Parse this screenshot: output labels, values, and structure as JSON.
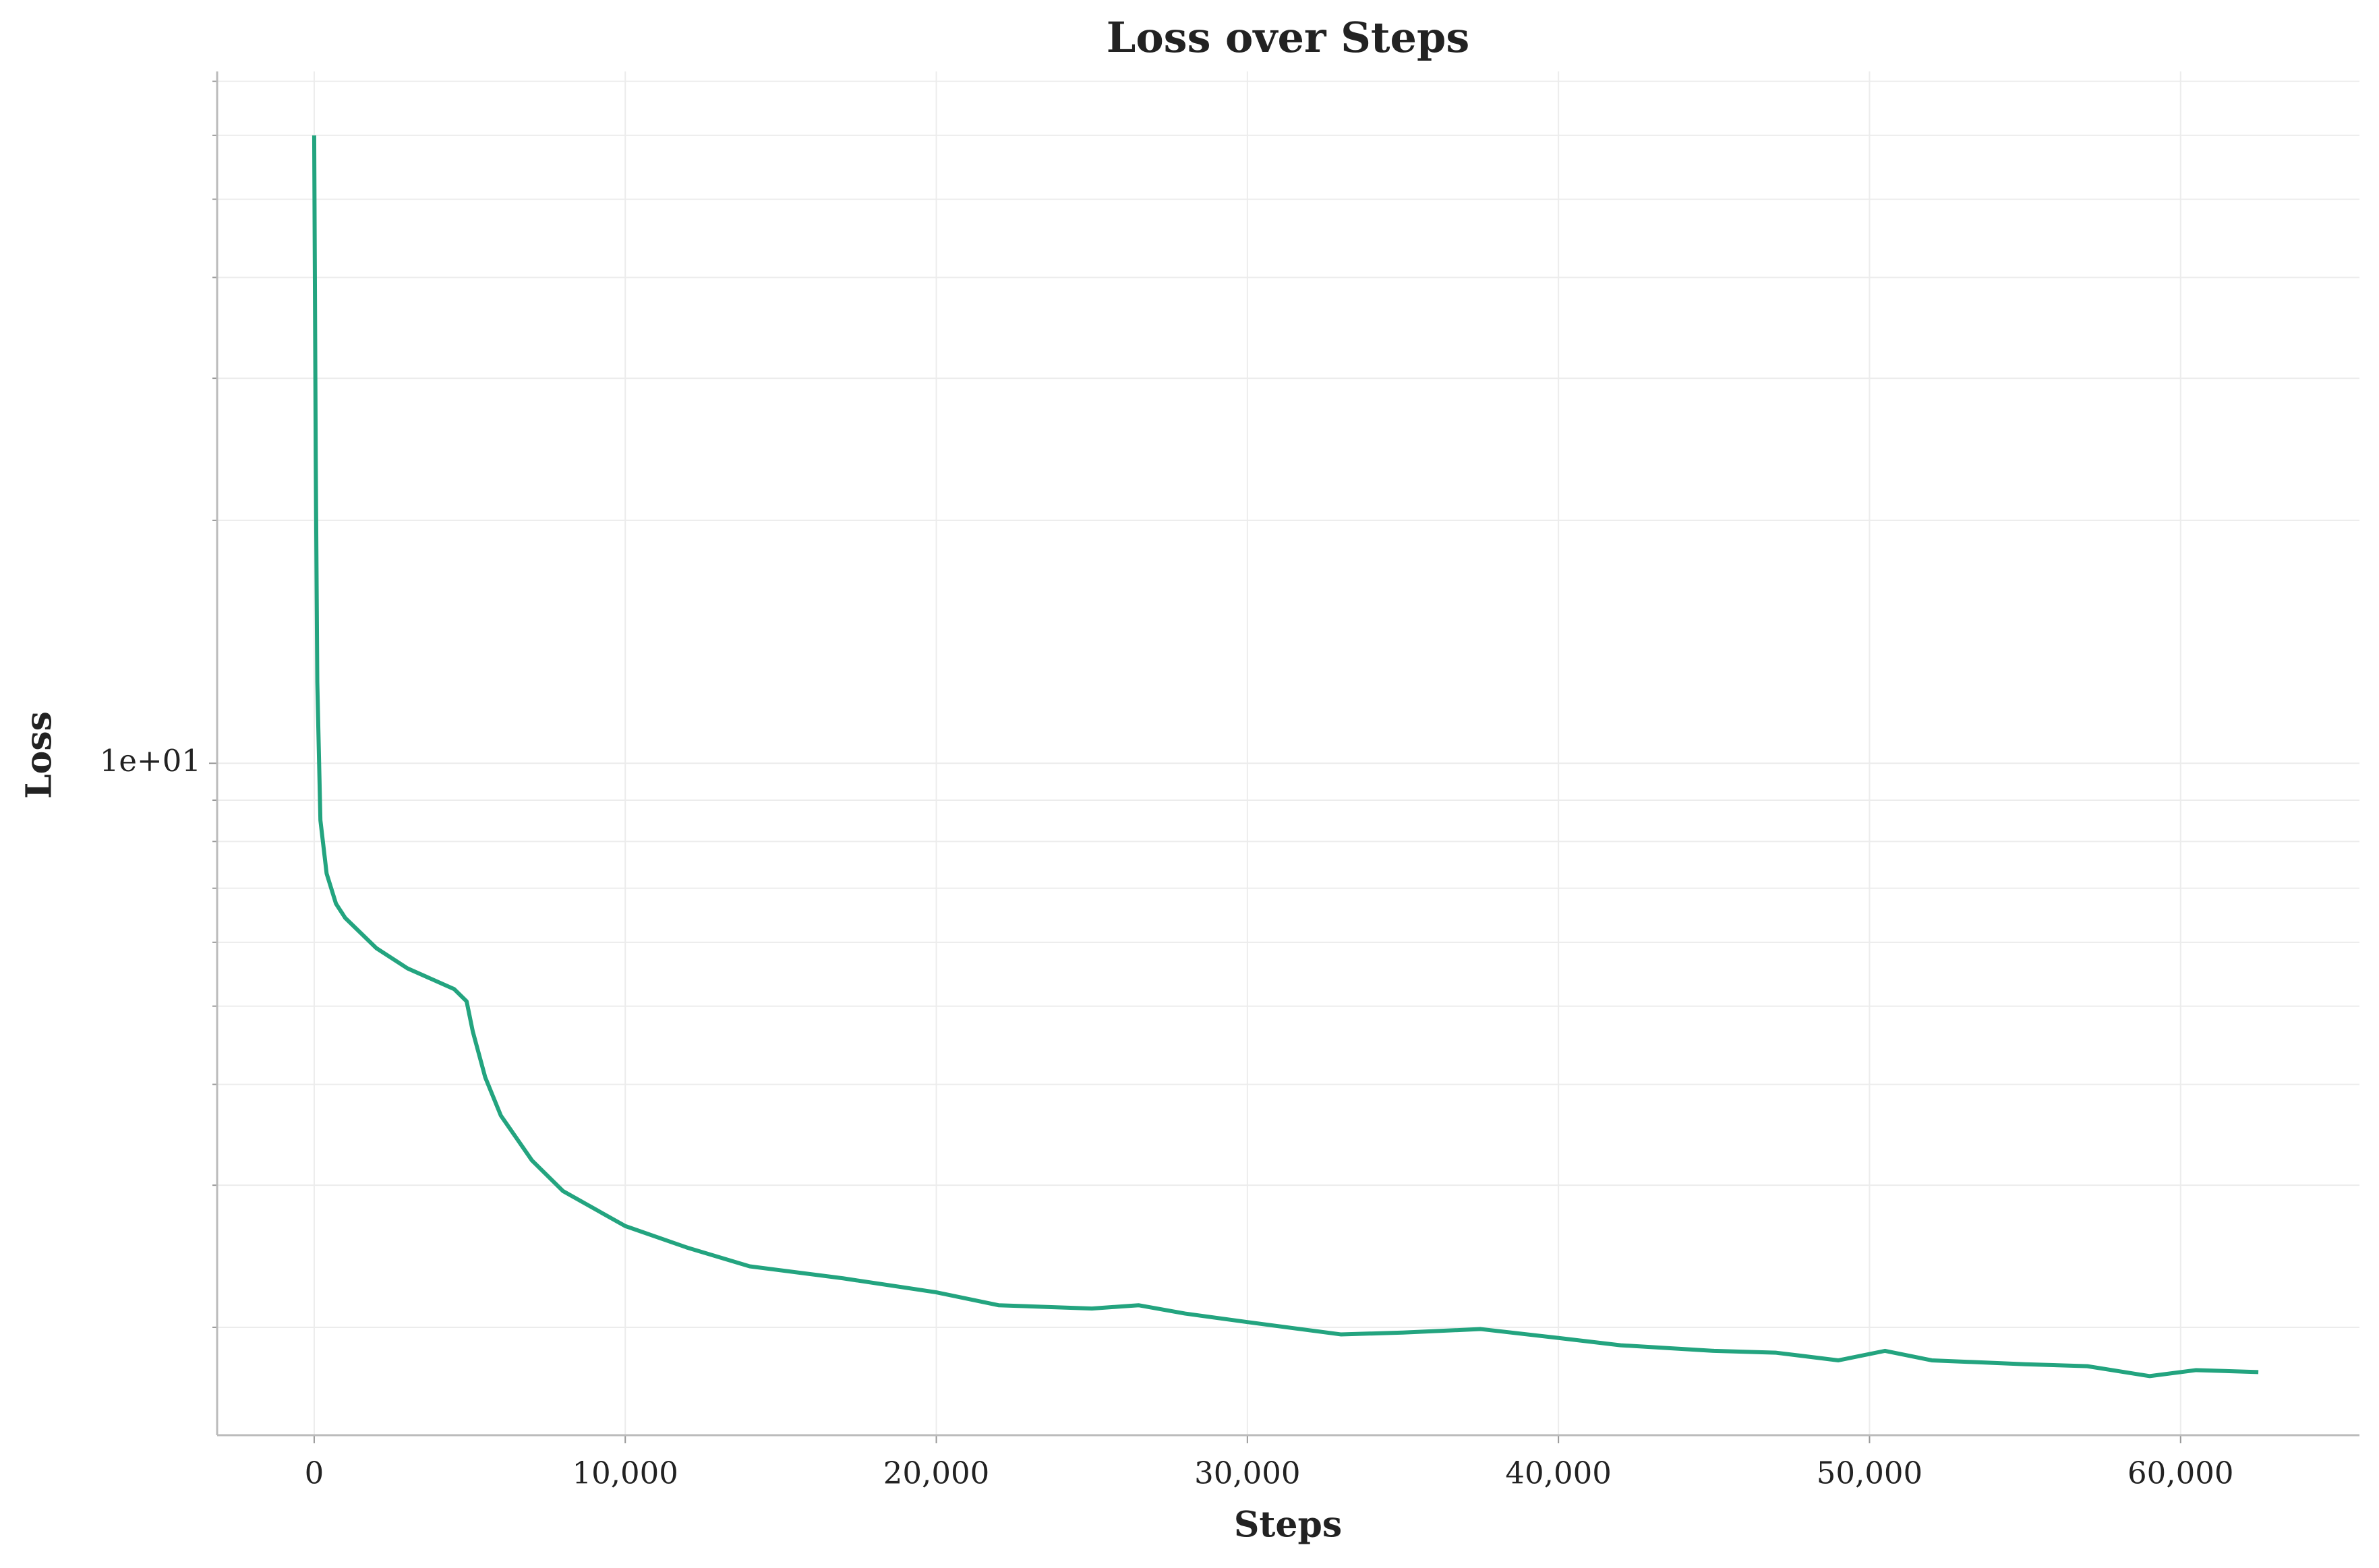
{
  "chart_data": {
    "type": "line",
    "title": "Loss over Steps",
    "x_label": "Steps",
    "y_label": "Loss",
    "x": [
      0,
      50,
      100,
      200,
      400,
      700,
      1000,
      2000,
      3000,
      4500,
      4900,
      5100,
      5500,
      6000,
      7000,
      8000,
      10000,
      12000,
      14000,
      17000,
      20000,
      22000,
      25000,
      26500,
      28000,
      30000,
      33000,
      35000,
      37500,
      40000,
      42000,
      45000,
      47000,
      49000,
      50500,
      52000,
      55000,
      57000,
      59000,
      60500,
      62500
    ],
    "series": [
      {
        "name": "Loss",
        "color": "#23a47f",
        "values": [
          60,
          24,
          12.6,
          8.5,
          7.3,
          6.7,
          6.43,
          5.9,
          5.57,
          5.25,
          5.07,
          4.65,
          4.08,
          3.66,
          3.22,
          2.95,
          2.67,
          2.51,
          2.38,
          2.3,
          2.21,
          2.13,
          2.11,
          2.13,
          2.08,
          2.03,
          1.96,
          1.97,
          1.99,
          1.94,
          1.9,
          1.87,
          1.86,
          1.82,
          1.87,
          1.82,
          1.8,
          1.79,
          1.74,
          1.77,
          1.76
        ]
      }
    ],
    "xlim": [
      -3120,
      65750
    ],
    "xticks": [
      0,
      {
        "value": 10000,
        "label": "10,000"
      },
      {
        "value": 20000,
        "label": "20,000"
      },
      {
        "value": 30000,
        "label": "30,000"
      },
      {
        "value": 40000,
        "label": "40,000"
      },
      {
        "value": 50000,
        "label": "50,000"
      },
      {
        "value": 60000,
        "label": "60,000"
      }
    ],
    "ylim": [
      1.47,
      72
    ],
    "y_scale": "log",
    "yticks": [
      {
        "value": 10,
        "label": "1e+01"
      }
    ],
    "yticks_minor": [
      2,
      3,
      4,
      5,
      6,
      7,
      8,
      9,
      20,
      30,
      40,
      50,
      60,
      70
    ],
    "grid": true
  }
}
